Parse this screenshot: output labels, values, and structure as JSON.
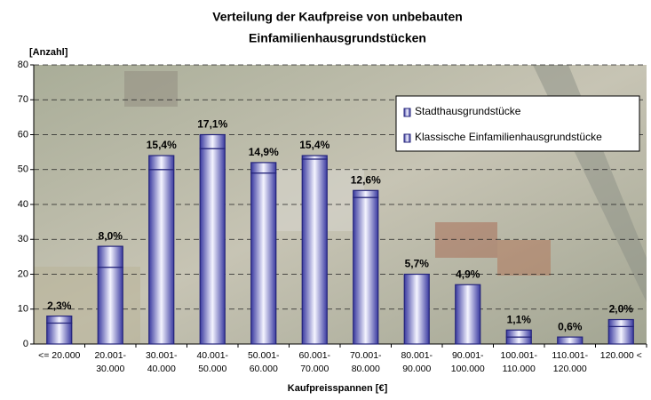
{
  "chart_data": {
    "type": "stacked_bar",
    "title": [
      "Verteilung der Kaufpreise von unbebauten",
      "Einfamilienhausgrundstücken"
    ],
    "y_label": "[Anzahl]",
    "x_label": "Kaufpreisspannen [€]",
    "categories": [
      [
        "<= 20.000"
      ],
      [
        "20.001-",
        "30.000"
      ],
      [
        "30.001-",
        "40.000"
      ],
      [
        "40.001-",
        "50.000"
      ],
      [
        "50.001-",
        "60.000"
      ],
      [
        "60.001-",
        "70.000"
      ],
      [
        "70.001-",
        "80.000"
      ],
      [
        "80.001-",
        "90.000"
      ],
      [
        "90.001-",
        "100.000"
      ],
      [
        "100.001-",
        "110.000"
      ],
      [
        "110.001-",
        "120.000"
      ],
      [
        "120.000 <"
      ]
    ],
    "series": [
      {
        "name": "Stadthausgrundstücke",
        "color": "#24247a",
        "values": [
          2,
          6,
          4,
          4,
          3,
          1,
          2,
          0,
          0,
          2,
          0,
          2
        ]
      },
      {
        "name": "Klassische Einfamilienhausgrundstücke",
        "color": "#24247a",
        "values": [
          6,
          22,
          50,
          56,
          49,
          53,
          42,
          20,
          17,
          2,
          2,
          5
        ]
      }
    ],
    "data_labels": [
      "2,3%",
      "8,0%",
      "15,4%",
      "17,1%",
      "14,9%",
      "15,4%",
      "12,6%",
      "5,7%",
      "4,9%",
      "1,1%",
      "0,6%",
      "2,0%"
    ],
    "ylim": [
      0,
      80
    ],
    "yticks": [
      0,
      10,
      20,
      30,
      40,
      50,
      60,
      70,
      80
    ],
    "grid": true
  }
}
